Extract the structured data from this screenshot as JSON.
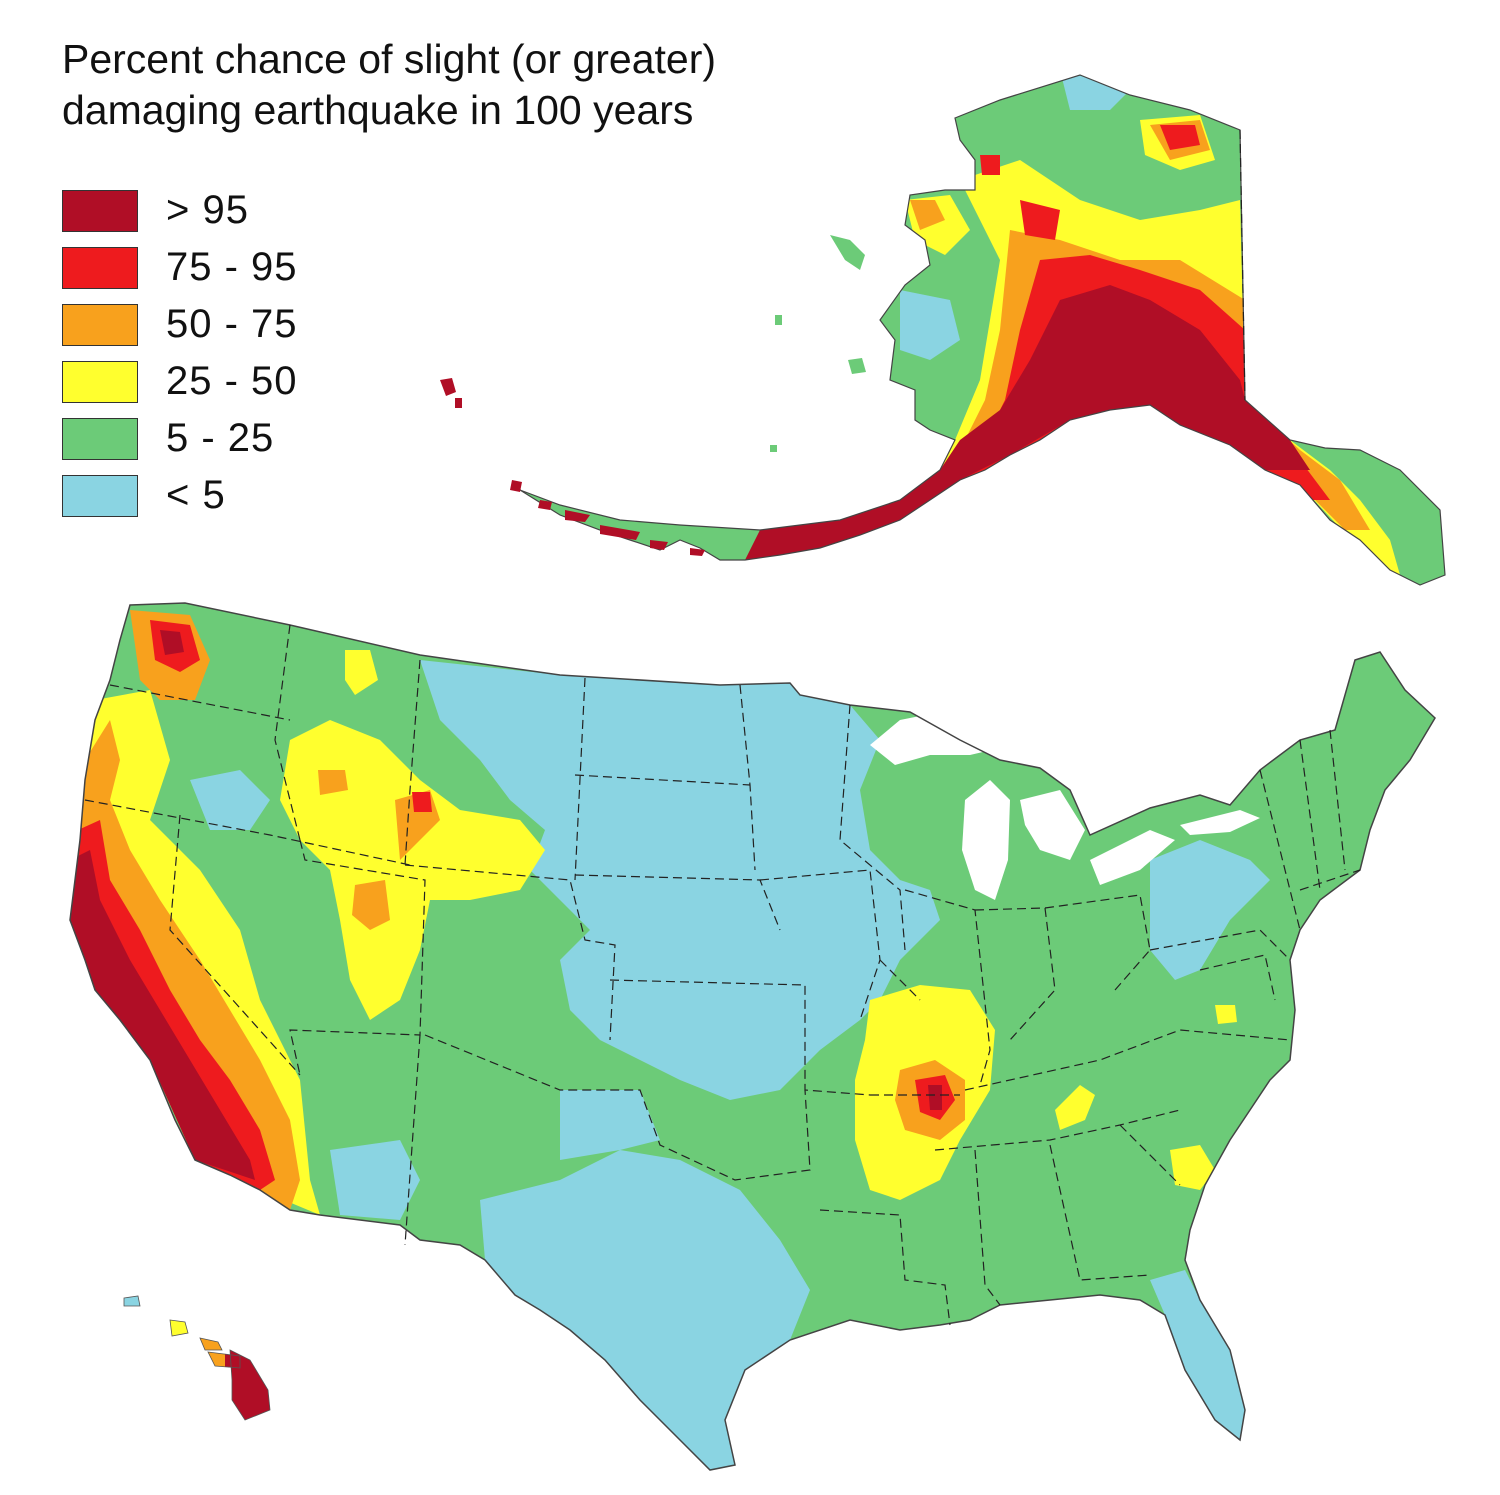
{
  "title": {
    "line1": "Percent chance of slight (or greater)",
    "line2": "damaging earthquake in 100 years"
  },
  "legend": [
    {
      "label": "> 95",
      "color": "#b00e26"
    },
    {
      "label": "75 - 95",
      "color": "#ee1b1e"
    },
    {
      "label": "50 - 75",
      "color": "#f8a11d"
    },
    {
      "label": "25 - 50",
      "color": "#ffff2e"
    },
    {
      "label": "5 - 25",
      "color": "#6ccb78"
    },
    {
      "label": "< 5",
      "color": "#8ad4e2"
    }
  ],
  "colors": {
    "gt95": "#b00e26",
    "p75_95": "#ee1b1e",
    "p50_75": "#f8a11d",
    "p25_50": "#ffff2e",
    "p5_25": "#6ccb78",
    "lt5": "#8ad4e2",
    "water": "#ffffff",
    "border": "#222222"
  },
  "regions": [
    "Alaska",
    "Contiguous United States",
    "Hawaii"
  ]
}
